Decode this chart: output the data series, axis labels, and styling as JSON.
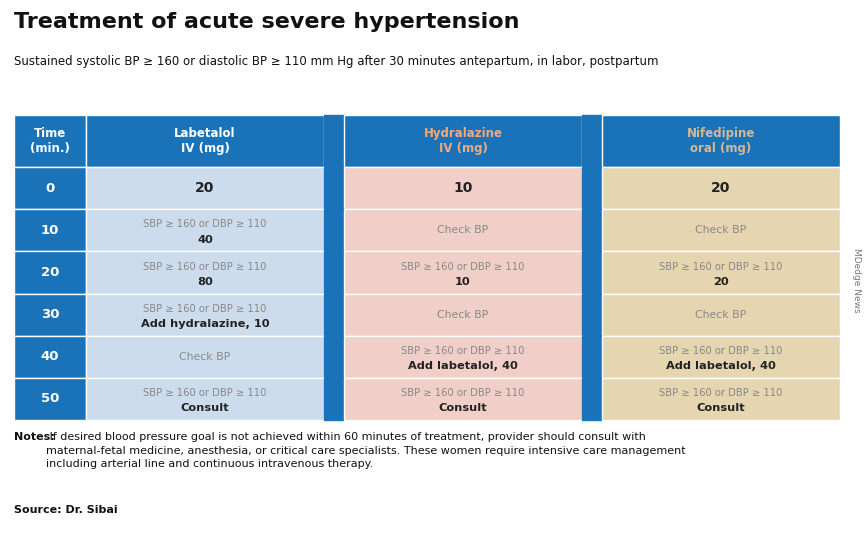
{
  "title": "Treatment of acute severe hypertension",
  "subtitle": "Sustained systolic BP ≥ 160 or diastolic BP ≥ 110 mm Hg after 30 minutes antepartum, in labor, postpartum",
  "notes_bold": "Notes:",
  "notes_rest": " If desired blood pressure goal is not achieved within 60 minutes of treatment, provider should consult with\nmaternal-fetal medicine, anesthesia, or critical care specialists. These women require intensive care management\nincluding arterial line and continuous intravenous therapy.",
  "source": "Source: Dr. Sibai",
  "watermark": "MDedge News",
  "bg_color": "#ffffff",
  "header_bg": "#1a72b8",
  "time_col_bg": "#1a72b8",
  "divider_col_bg": "#1a72b8",
  "lab_cell_bg": "#cddcec",
  "hydra_cell_bg": "#f0cfc8",
  "nife_cell_bg": "#e5d5b0",
  "cell_condition_color": "#888888",
  "cell_bold_color": "#222222",
  "rows": [
    {
      "time": "0",
      "lab_line1": "",
      "lab_line2": "20",
      "lab_only_value": true,
      "hydra_line1": "",
      "hydra_line2": "10",
      "hydra_only_value": true,
      "nife_line1": "",
      "nife_line2": "20",
      "nife_only_value": true
    },
    {
      "time": "10",
      "lab_line1": "SBP ≥ 160 or DBP ≥ 110",
      "lab_line2": "40",
      "lab_only_value": false,
      "hydra_line1": "Check BP",
      "hydra_line2": "",
      "hydra_only_value": false,
      "nife_line1": "Check BP",
      "nife_line2": "",
      "nife_only_value": false
    },
    {
      "time": "20",
      "lab_line1": "SBP ≥ 160 or DBP ≥ 110",
      "lab_line2": "80",
      "lab_only_value": false,
      "hydra_line1": "SBP ≥ 160 or DBP ≥ 110",
      "hydra_line2": "10",
      "hydra_only_value": false,
      "nife_line1": "SBP ≥ 160 or DBP ≥ 110",
      "nife_line2": "20",
      "nife_only_value": false
    },
    {
      "time": "30",
      "lab_line1": "SBP ≥ 160 or DBP ≥ 110",
      "lab_line2": "Add hydralazine, 10",
      "lab_only_value": false,
      "hydra_line1": "Check BP",
      "hydra_line2": "",
      "hydra_only_value": false,
      "nife_line1": "Check BP",
      "nife_line2": "",
      "nife_only_value": false
    },
    {
      "time": "40",
      "lab_line1": "Check BP",
      "lab_line2": "",
      "lab_only_value": false,
      "hydra_line1": "SBP ≥ 160 or DBP ≥ 110",
      "hydra_line2": "Add labetalol, 40",
      "hydra_only_value": false,
      "nife_line1": "SBP ≥ 160 or DBP ≥ 110",
      "nife_line2": "Add labetalol, 40",
      "nife_only_value": false
    },
    {
      "time": "50",
      "lab_line1": "SBP ≥ 160 or DBP ≥ 110",
      "lab_line2": "Consult",
      "lab_only_value": false,
      "hydra_line1": "SBP ≥ 160 or DBP ≥ 110",
      "hydra_line2": "Consult",
      "hydra_only_value": false,
      "nife_line1": "SBP ≥ 160 or DBP ≥ 110",
      "nife_line2": "Consult",
      "nife_only_value": false
    }
  ]
}
